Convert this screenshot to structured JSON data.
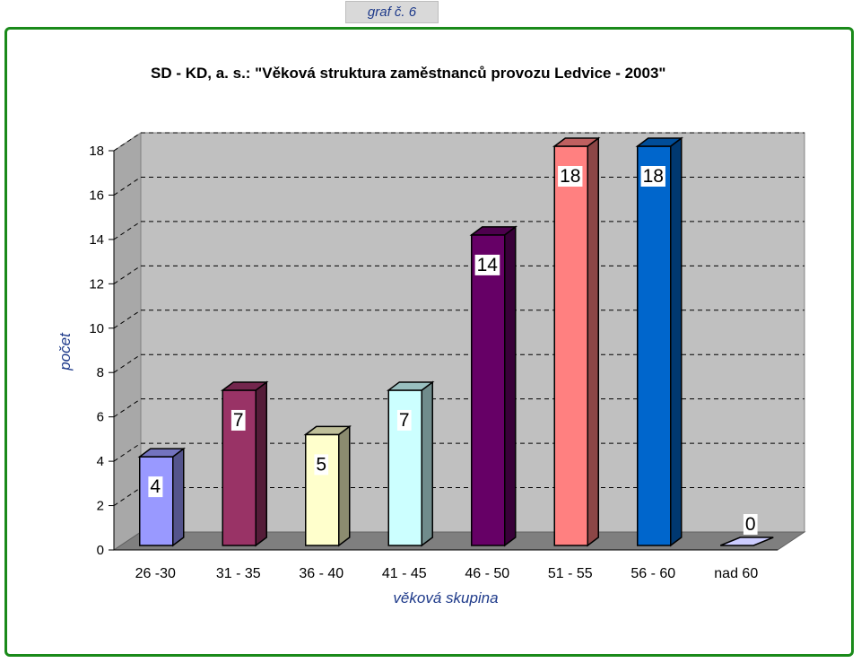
{
  "corner_tag": "graf č. 6",
  "chart_data": {
    "type": "bar",
    "title": "SD - KD, a. s.: \"Věková struktura zaměstnanců provozu Ledvice - 2003\"",
    "xlabel": "věková skupina",
    "ylabel": "počet",
    "ylim": [
      0,
      18
    ],
    "yticks": [
      0,
      2,
      4,
      6,
      8,
      10,
      12,
      14,
      16,
      18
    ],
    "grid": true,
    "three_d": true,
    "categories": [
      "26 -30",
      "31 - 35",
      "36 - 40",
      "41 - 45",
      "46 - 50",
      "51 - 55",
      "56 - 60",
      "nad 60"
    ],
    "values": [
      4,
      7,
      5,
      7,
      14,
      18,
      18,
      0
    ],
    "colors": [
      "#9999ff",
      "#993366",
      "#ffffcc",
      "#ccffff",
      "#660066",
      "#ff8080",
      "#0066cc",
      "#ccccff"
    ]
  }
}
